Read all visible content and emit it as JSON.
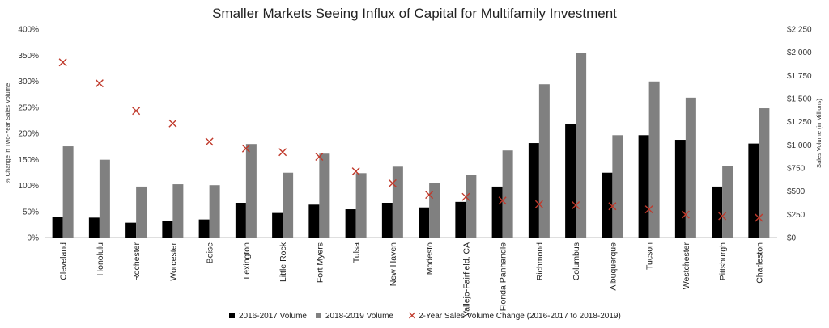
{
  "chart_data": {
    "type": "bar",
    "title": "Smaller Markets Seeing Influx of Capital for Multifamily Investment",
    "ylabel_left": "% Change in Two-Year Sales Volume",
    "ylabel_right": "Sales Volume (in Millions)",
    "xlabel": "",
    "ylim_left": [
      0,
      400
    ],
    "ylim_right": [
      0,
      2250
    ],
    "left_ticks": [
      "0%",
      "50%",
      "100%",
      "150%",
      "200%",
      "250%",
      "300%",
      "350%",
      "400%"
    ],
    "right_ticks": [
      "$0",
      "$250",
      "$500",
      "$750",
      "$1,000",
      "$1,250",
      "$1,500",
      "$1,750",
      "$2,000",
      "$2,250"
    ],
    "grid": false,
    "legend_position": "bottom",
    "categories": [
      "Cleveland",
      "Honolulu",
      "Rochester",
      "Worcester",
      "Boise",
      "Lexington",
      "Little Rock",
      "Fort Myers",
      "Tulsa",
      "New Haven",
      "Modesto",
      "Vallejo-Fairfield, CA",
      "Florida Panhandle",
      "Richmond",
      "Columbus",
      "Albuquerque",
      "Tucson",
      "Westchester",
      "Pittsburgh",
      "Charleston"
    ],
    "series": [
      {
        "name": "2016-2017 Volume",
        "axis": "right",
        "kind": "bar",
        "color": "#000000",
        "values": [
          225,
          215,
          160,
          180,
          195,
          375,
          265,
          355,
          305,
          375,
          325,
          385,
          550,
          1020,
          1225,
          700,
          1105,
          1055,
          550,
          1015
        ]
      },
      {
        "name": "2018-2019 Volume",
        "axis": "right",
        "kind": "bar",
        "color": "#808080",
        "values": [
          985,
          840,
          550,
          575,
          565,
          1010,
          700,
          905,
          695,
          765,
          590,
          675,
          940,
          1655,
          1990,
          1105,
          1685,
          1510,
          770,
          1395
        ]
      },
      {
        "name": "2-Year Sales Volume Change (2016-2017 to 2018-2019)",
        "axis": "left",
        "kind": "marker",
        "color": "#c0392b",
        "values": [
          336,
          296,
          243,
          219,
          184,
          171,
          164,
          155,
          127,
          104,
          82,
          78,
          71,
          64,
          62,
          60,
          54,
          44,
          41,
          38
        ]
      }
    ]
  }
}
